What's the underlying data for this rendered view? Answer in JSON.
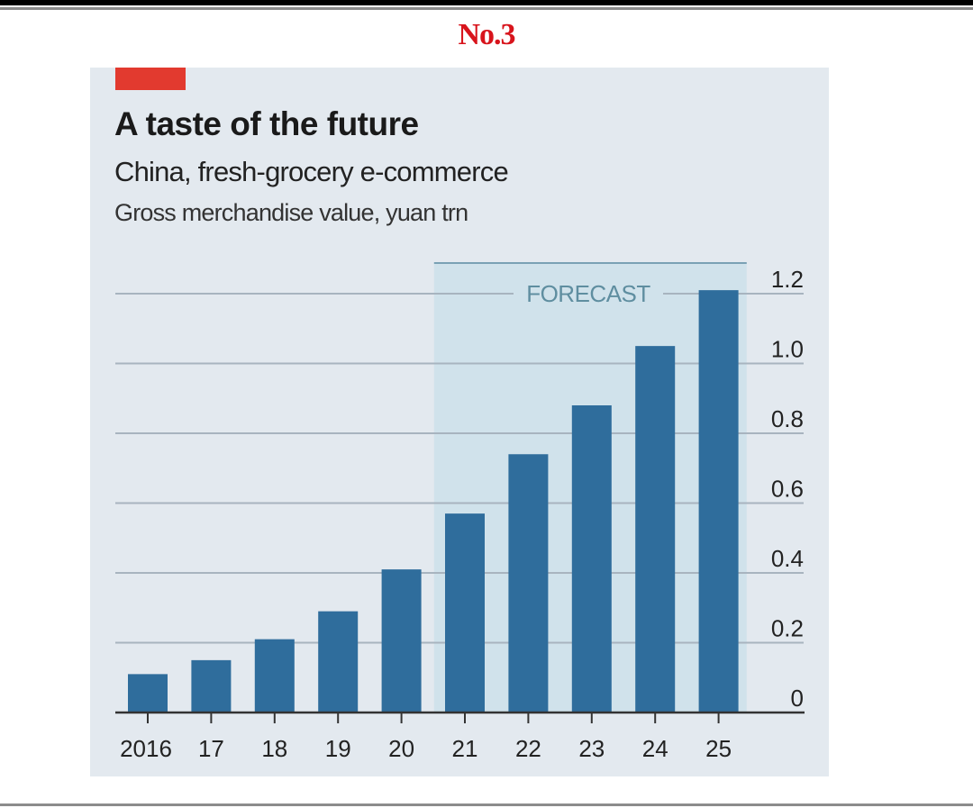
{
  "page": {
    "label": "No.3"
  },
  "colors": {
    "accent_red": "#e23a2f",
    "bar": "#2f6d9c",
    "panel_bg": "#e3e9ef",
    "forecast_shade": "#cde0ea",
    "page_label": "#d8141c"
  },
  "chart_data": {
    "type": "bar",
    "title": "A taste of the future",
    "subtitle": "China, fresh-grocery e-commerce",
    "ylabel": "Gross merchandise value, yuan trn",
    "xlabel": "",
    "categories": [
      "2016",
      "17",
      "18",
      "19",
      "20",
      "21",
      "22",
      "23",
      "24",
      "25"
    ],
    "years": [
      2016,
      2017,
      2018,
      2019,
      2020,
      2021,
      2022,
      2023,
      2024,
      2025
    ],
    "values": [
      0.11,
      0.15,
      0.21,
      0.29,
      0.41,
      0.57,
      0.74,
      0.88,
      1.05,
      1.21
    ],
    "ylim": [
      0,
      1.2
    ],
    "yticks": [
      0,
      0.2,
      0.4,
      0.6,
      0.8,
      1.0,
      1.2
    ],
    "ytick_labels": [
      "0",
      "0.2",
      "0.4",
      "0.6",
      "0.8",
      "1.0",
      "1.2"
    ],
    "y_axis_side": "right",
    "grid": true,
    "legend": null,
    "annotations": [
      {
        "text": "FORECAST",
        "range": [
          "21",
          "25"
        ]
      }
    ]
  }
}
